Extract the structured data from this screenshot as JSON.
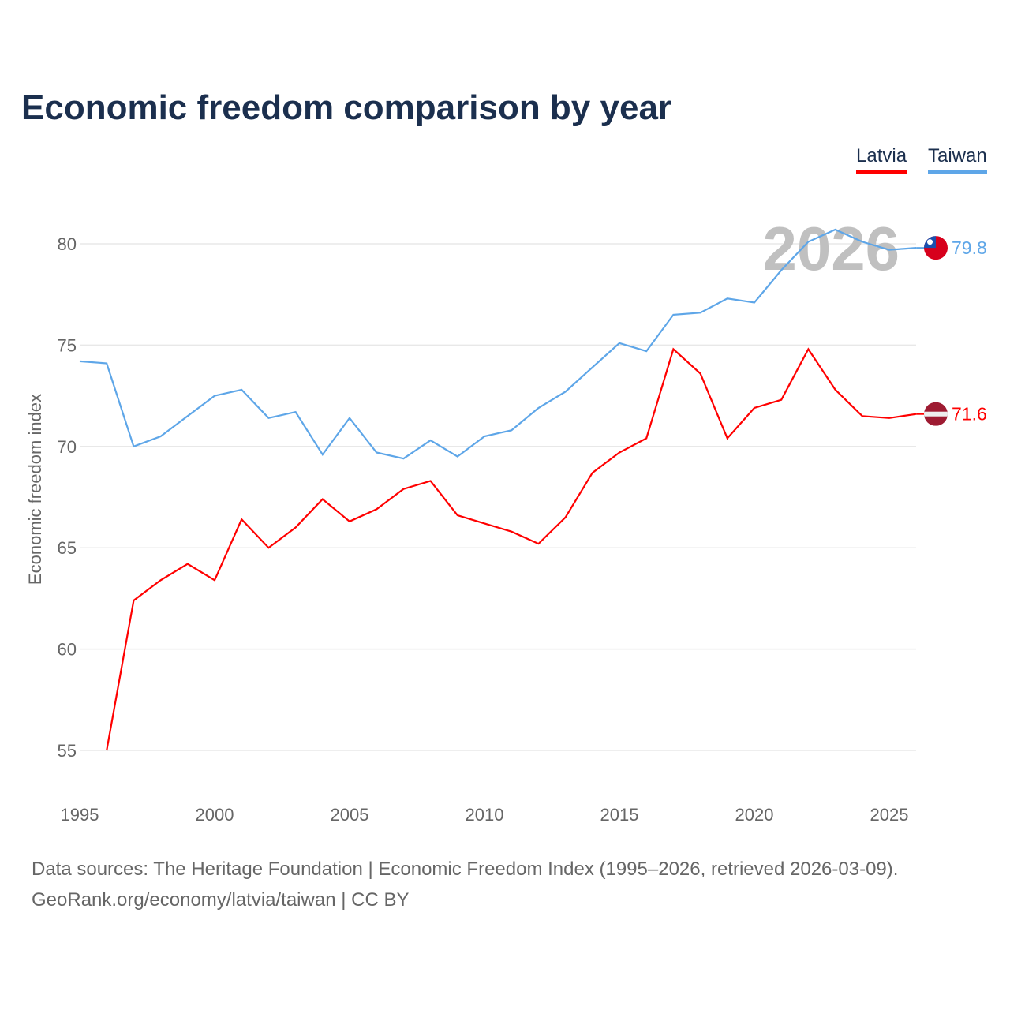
{
  "chart_data": {
    "type": "line",
    "title": "Economic freedom comparison by year",
    "xlabel": "",
    "ylabel": "Economic freedom index",
    "xlim": [
      1995,
      2026
    ],
    "ylim": [
      53,
      82
    ],
    "x_ticks": [
      1995,
      2000,
      2005,
      2010,
      2015,
      2020,
      2025
    ],
    "y_ticks": [
      55,
      60,
      65,
      70,
      75,
      80
    ],
    "grid": true,
    "legend_position": "top-right",
    "year_watermark": "2026",
    "series": [
      {
        "name": "Latvia",
        "color": "#ff0000",
        "end_label": "71.6",
        "x": [
          1996,
          1997,
          1998,
          1999,
          2000,
          2001,
          2002,
          2003,
          2004,
          2005,
          2006,
          2007,
          2008,
          2009,
          2010,
          2011,
          2012,
          2013,
          2014,
          2015,
          2016,
          2017,
          2018,
          2019,
          2020,
          2021,
          2022,
          2023,
          2024,
          2025,
          2026
        ],
        "values": [
          55.0,
          62.4,
          63.4,
          64.2,
          63.4,
          66.4,
          65.0,
          66.0,
          67.4,
          66.3,
          66.9,
          67.9,
          68.3,
          66.6,
          66.2,
          65.8,
          65.2,
          66.5,
          68.7,
          69.7,
          70.4,
          74.8,
          73.6,
          70.4,
          71.9,
          72.3,
          74.8,
          72.8,
          71.5,
          71.4,
          71.6
        ]
      },
      {
        "name": "Taiwan",
        "color": "#5ea6e8",
        "end_label": "79.8",
        "x": [
          1995,
          1996,
          1997,
          1998,
          1999,
          2000,
          2001,
          2002,
          2003,
          2004,
          2005,
          2006,
          2007,
          2008,
          2009,
          2010,
          2011,
          2012,
          2013,
          2014,
          2015,
          2016,
          2017,
          2018,
          2019,
          2020,
          2021,
          2022,
          2023,
          2024,
          2025,
          2026
        ],
        "values": [
          74.2,
          74.1,
          70.0,
          70.5,
          71.5,
          72.5,
          72.8,
          71.4,
          71.7,
          69.6,
          71.4,
          69.7,
          69.4,
          70.3,
          69.5,
          70.5,
          70.8,
          71.9,
          72.7,
          73.9,
          75.1,
          74.7,
          76.5,
          76.6,
          77.3,
          77.1,
          78.7,
          80.1,
          80.7,
          80.1,
          79.7,
          79.8
        ]
      }
    ]
  },
  "footer": {
    "sources": "Data sources: The Heritage Foundation | Economic Freedom Index (1995–2026, retrieved 2026-03-09).",
    "credit": "GeoRank.org/economy/latvia/taiwan | CC BY"
  }
}
